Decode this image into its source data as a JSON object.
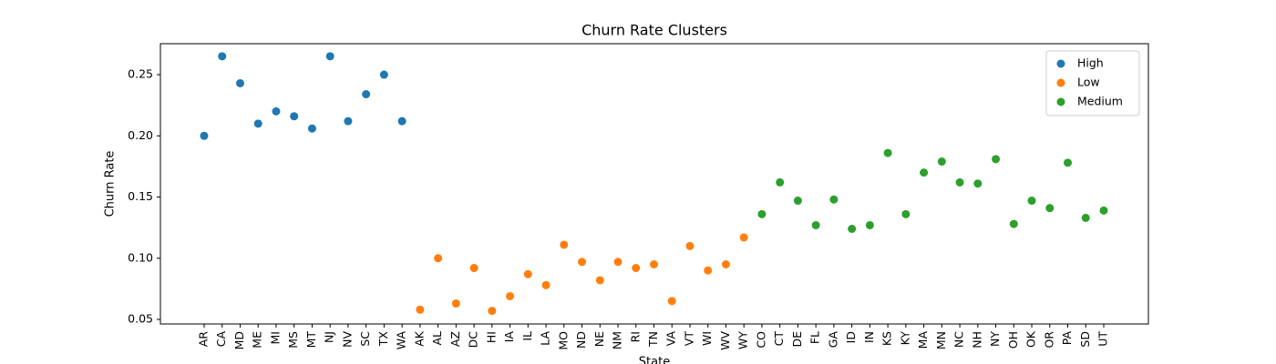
{
  "chart_data": {
    "type": "scatter",
    "title": "Churn Rate Clusters",
    "xlabel": "State",
    "ylabel": "Churn Rate",
    "categories": [
      "AR",
      "CA",
      "MD",
      "ME",
      "MI",
      "MS",
      "MT",
      "NJ",
      "NV",
      "SC",
      "TX",
      "WA",
      "AK",
      "AL",
      "AZ",
      "DC",
      "HI",
      "IA",
      "IL",
      "LA",
      "MO",
      "ND",
      "NE",
      "NM",
      "RI",
      "TN",
      "VA",
      "VT",
      "WI",
      "WV",
      "WY",
      "CO",
      "CT",
      "DE",
      "FL",
      "GA",
      "ID",
      "IN",
      "KS",
      "KY",
      "MA",
      "MN",
      "NC",
      "NH",
      "NY",
      "OH",
      "OK",
      "OR",
      "PA",
      "SD",
      "UT"
    ],
    "series": [
      {
        "name": "High",
        "color": "#1f77b4",
        "values": [
          0.2,
          0.265,
          0.243,
          0.21,
          0.22,
          0.216,
          0.206,
          0.265,
          0.212,
          0.234,
          0.25,
          0.212,
          null,
          null,
          null,
          null,
          null,
          null,
          null,
          null,
          null,
          null,
          null,
          null,
          null,
          null,
          null,
          null,
          null,
          null,
          null,
          null,
          null,
          null,
          null,
          null,
          null,
          null,
          null,
          null,
          null,
          null,
          null,
          null,
          null,
          null,
          null,
          null,
          null,
          null,
          null
        ]
      },
      {
        "name": "Low",
        "color": "#ff7f0e",
        "values": [
          null,
          null,
          null,
          null,
          null,
          null,
          null,
          null,
          null,
          null,
          null,
          null,
          0.058,
          0.1,
          0.063,
          0.092,
          0.057,
          0.069,
          0.087,
          0.078,
          0.111,
          0.097,
          0.082,
          0.097,
          0.092,
          0.095,
          0.065,
          0.11,
          0.09,
          0.095,
          0.117,
          null,
          null,
          null,
          null,
          null,
          null,
          null,
          null,
          null,
          null,
          null,
          null,
          null,
          null,
          null,
          null,
          null,
          null,
          null,
          null
        ]
      },
      {
        "name": "Medium",
        "color": "#2ca02c",
        "values": [
          null,
          null,
          null,
          null,
          null,
          null,
          null,
          null,
          null,
          null,
          null,
          null,
          null,
          null,
          null,
          null,
          null,
          null,
          null,
          null,
          null,
          null,
          null,
          null,
          null,
          null,
          null,
          null,
          null,
          null,
          null,
          0.136,
          0.162,
          0.147,
          0.127,
          0.148,
          0.124,
          0.127,
          0.186,
          0.136,
          0.17,
          0.179,
          0.162,
          0.161,
          0.181,
          0.128,
          0.147,
          0.141,
          0.178,
          0.133,
          0.139
        ]
      }
    ],
    "ylim": [
      0.0463,
      0.2753
    ],
    "yticks": [
      0.05,
      {
        "value": 0.1,
        "label": "0.10"
      },
      0.15,
      {
        "value": 0.2,
        "label": "0.20"
      },
      0.25
    ],
    "grid": false,
    "legend": "upper right"
  }
}
